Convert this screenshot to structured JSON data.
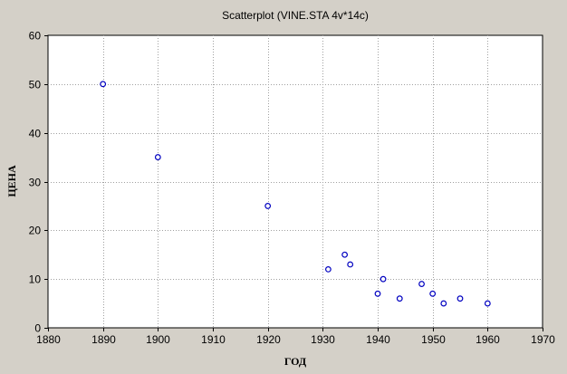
{
  "chart_data": {
    "type": "scatter",
    "title": "Scatterplot (VINE.STA 4v*14c)",
    "xlabel": "ГОД",
    "ylabel": "ЦЕНА",
    "xlim": [
      1880,
      1970
    ],
    "ylim": [
      0,
      60
    ],
    "xticks": [
      1880,
      1890,
      1900,
      1910,
      1920,
      1930,
      1940,
      1950,
      1960,
      1970
    ],
    "yticks": [
      0,
      10,
      20,
      30,
      40,
      50,
      60
    ],
    "grid": true,
    "marker_color": "#0000c0",
    "points": [
      {
        "x": 1890,
        "y": 50
      },
      {
        "x": 1900,
        "y": 35
      },
      {
        "x": 1920,
        "y": 25
      },
      {
        "x": 1931,
        "y": 12
      },
      {
        "x": 1934,
        "y": 15
      },
      {
        "x": 1935,
        "y": 13
      },
      {
        "x": 1940,
        "y": 7
      },
      {
        "x": 1941,
        "y": 10
      },
      {
        "x": 1944,
        "y": 6
      },
      {
        "x": 1948,
        "y": 9
      },
      {
        "x": 1950,
        "y": 7
      },
      {
        "x": 1952,
        "y": 5
      },
      {
        "x": 1955,
        "y": 6
      },
      {
        "x": 1960,
        "y": 5
      }
    ]
  }
}
